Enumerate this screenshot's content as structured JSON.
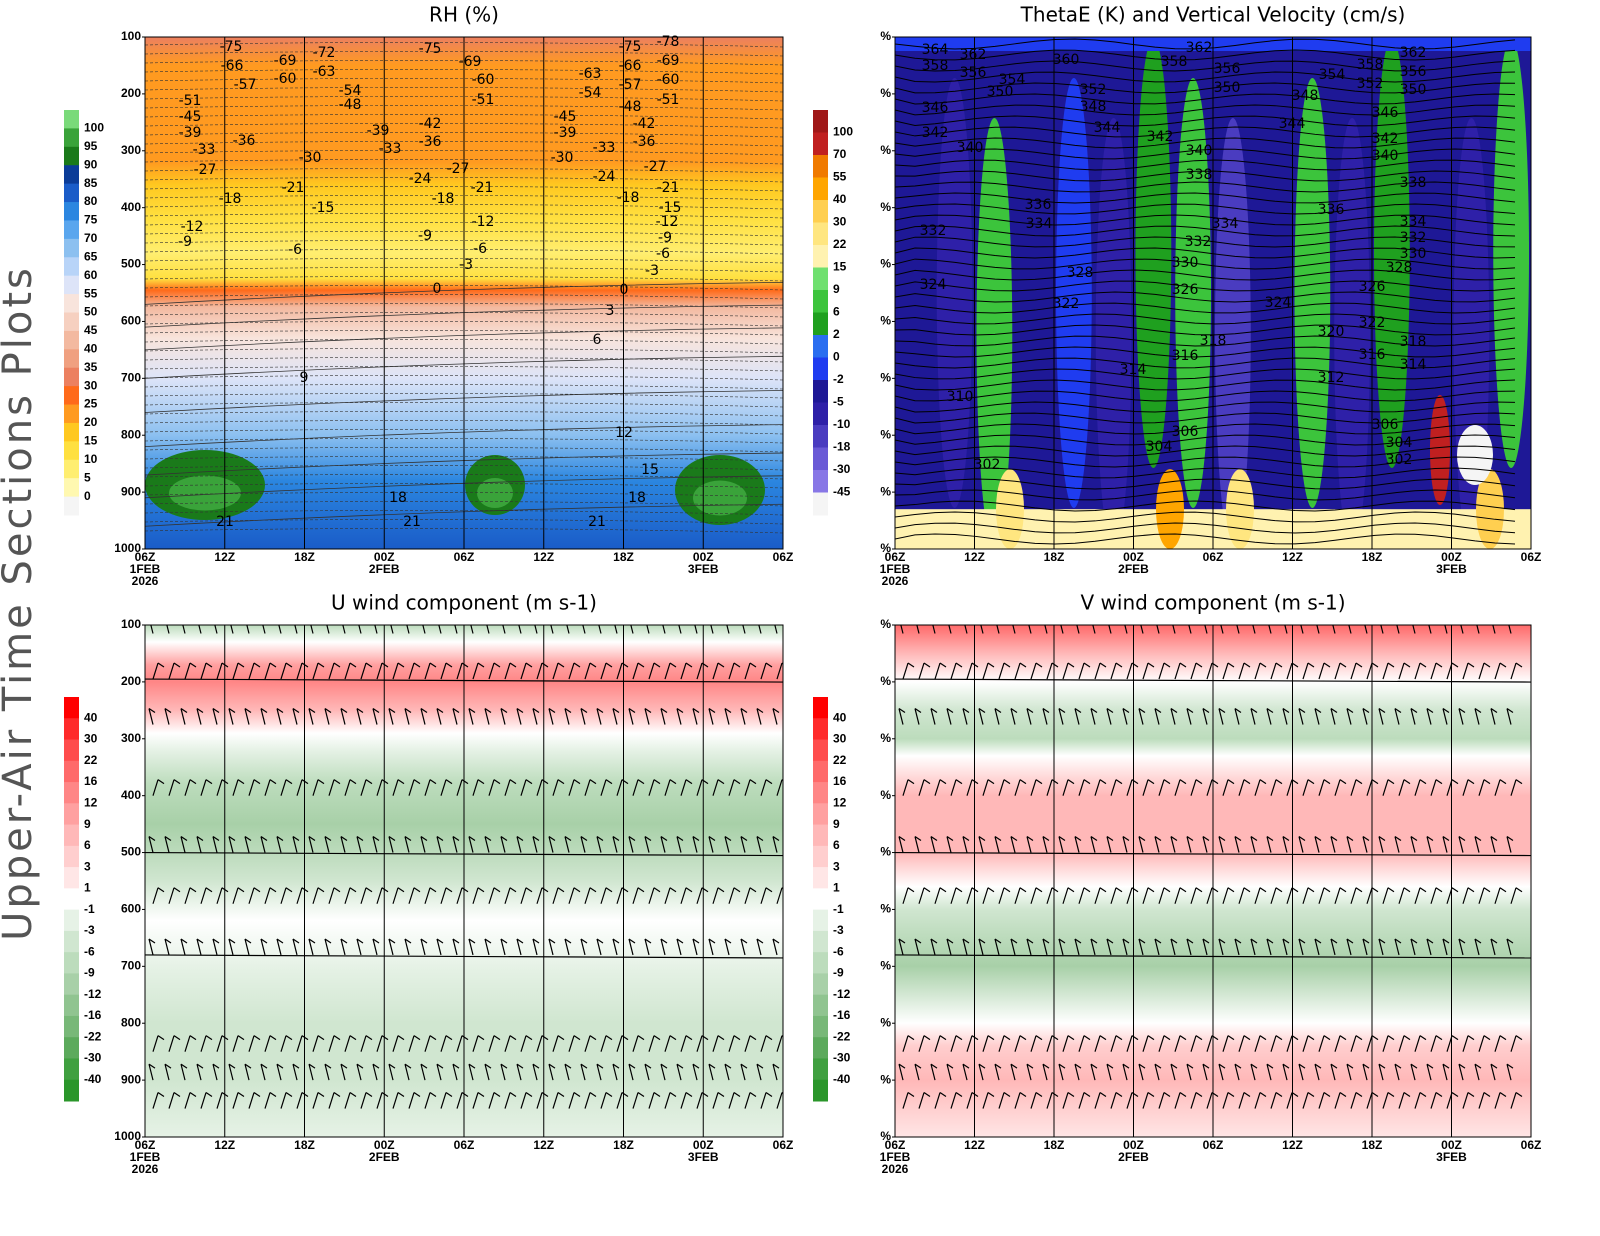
{
  "page_label": "Upper-Air Time Sections Plots",
  "chart_data": [
    {
      "type": "contour",
      "title": "RH (%)",
      "x_labels": [
        "06Z",
        "12Z",
        "18Z",
        "00Z",
        "06Z",
        "12Z",
        "18Z",
        "00Z",
        "06Z"
      ],
      "x_dates": [
        "1FEB",
        null,
        null,
        "2FEB",
        null,
        null,
        null,
        "3FEB",
        null
      ],
      "x_years": [
        "2026",
        null,
        null,
        null,
        null,
        null,
        null,
        null,
        null
      ],
      "ylim": [
        100,
        1000
      ],
      "yticks": [
        100,
        200,
        300,
        400,
        500,
        600,
        700,
        800,
        900,
        1000
      ],
      "colorbar": {
        "levels": [
          100,
          95,
          90,
          85,
          80,
          75,
          70,
          65,
          60,
          55,
          50,
          45,
          40,
          35,
          30,
          25,
          20,
          15,
          10,
          5,
          0
        ],
        "colors": [
          "#7ada7a",
          "#3aa33a",
          "#1a7a1a",
          "#0b3c98",
          "#1a5cc8",
          "#2b86e0",
          "#5aa6ee",
          "#8cc0f0",
          "#b8d4f8",
          "#dde4f8",
          "#f8e4dc",
          "#f6d0c0",
          "#f3b9a0",
          "#f0a080",
          "#ec8060",
          "#ff6a1a",
          "#ff9a20",
          "#ffc820",
          "#ffe040",
          "#ffee70",
          "#fff8b0",
          "#f5f5f5"
        ]
      },
      "contour_labels": [
        -75,
        -66,
        -57,
        -69,
        -60,
        -72,
        -63,
        -75,
        -69,
        -60,
        -51,
        -54,
        -48,
        -51,
        -45,
        -39,
        -33,
        -36,
        -27,
        -30,
        -39,
        -33,
        -42,
        -36,
        -27,
        -24,
        -21,
        -18,
        -21,
        -15,
        -18,
        -12,
        -9,
        -12,
        -9,
        -6,
        -3,
        -6,
        -75,
        -78,
        -66,
        -69,
        -57,
        -60,
        -51,
        -63,
        -54,
        -48,
        -45,
        -39,
        -30,
        -42,
        -36,
        -33,
        -27,
        -24,
        -21,
        -18,
        -15,
        -12,
        -9,
        -6,
        -3,
        0,
        0,
        3,
        6,
        9,
        12,
        15,
        18,
        18,
        21,
        21,
        21
      ]
    },
    {
      "type": "contour",
      "title": "ThetaE (K) and Vertical Velocity (cm/s)",
      "x_labels": [
        "06Z",
        "12Z",
        "18Z",
        "00Z",
        "06Z",
        "12Z",
        "18Z",
        "00Z",
        "06Z"
      ],
      "x_dates": [
        "1FEB",
        null,
        null,
        "2FEB",
        null,
        null,
        null,
        "3FEB",
        null
      ],
      "x_years": [
        "2026",
        null,
        null,
        null,
        null,
        null,
        null,
        null,
        null
      ],
      "ylim": [
        100,
        1000
      ],
      "yticks": [
        {
          "value": 100,
          "label": "%"
        },
        {
          "value": 200,
          "label": "%"
        },
        {
          "value": 300,
          "label": "%"
        },
        {
          "value": 400,
          "label": "%"
        },
        {
          "value": 500,
          "label": "%"
        },
        {
          "value": 600,
          "label": "%"
        },
        {
          "value": 700,
          "label": "%"
        },
        {
          "value": 800,
          "label": "%"
        },
        {
          "value": 900,
          "label": "%"
        },
        {
          "value": 1000,
          "label": "%"
        }
      ],
      "colorbar": {
        "levels": [
          100,
          70,
          55,
          40,
          30,
          22,
          15,
          9,
          6,
          2,
          0,
          -2,
          -5,
          -10,
          -18,
          -30,
          -45
        ],
        "colors": [
          "#a01818",
          "#c02020",
          "#f07a00",
          "#ffa500",
          "#ffcf50",
          "#ffe680",
          "#fff2b0",
          "#6fe06f",
          "#3cc43c",
          "#1fa01f",
          "#2a6ef0",
          "#1f3cf0",
          "#1e1896",
          "#2e20a8",
          "#4a3cc0",
          "#6a5ad6",
          "#8877e6",
          "#f5f5f5"
        ]
      },
      "contour_labels": [
        364,
        358,
        362,
        356,
        360,
        354,
        350,
        352,
        348,
        344,
        346,
        342,
        340,
        342,
        362,
        358,
        356,
        350,
        340,
        338,
        348,
        344,
        354,
        358,
        352,
        362,
        356,
        350,
        346,
        342,
        340,
        338,
        336,
        334,
        332,
        334,
        332,
        330,
        328,
        326,
        324,
        322,
        324,
        336,
        334,
        332,
        330,
        328,
        326,
        322,
        320,
        318,
        316,
        314,
        316,
        318,
        314,
        312,
        310,
        306,
        304,
        302,
        306,
        304,
        302
      ]
    },
    {
      "type": "contour",
      "title": "U wind component (m s-1)",
      "x_labels": [
        "06Z",
        "12Z",
        "18Z",
        "00Z",
        "06Z",
        "12Z",
        "18Z",
        "00Z",
        "06Z"
      ],
      "x_dates": [
        "1FEB",
        null,
        null,
        "2FEB",
        null,
        null,
        null,
        "3FEB",
        null
      ],
      "x_years": [
        "2026",
        null,
        null,
        null,
        null,
        null,
        null,
        null,
        null
      ],
      "ylim": [
        100,
        1000
      ],
      "yticks": [
        100,
        200,
        300,
        400,
        500,
        600,
        700,
        800,
        900,
        1000
      ],
      "colorbar": {
        "levels": [
          40,
          30,
          22,
          16,
          12,
          9,
          6,
          3,
          1,
          -1,
          -3,
          -6,
          -9,
          -12,
          -16,
          -22,
          -30,
          -40
        ],
        "colors": [
          "#ff0000",
          "#ff2a2a",
          "#ff4c4c",
          "#ff6a6a",
          "#ff8686",
          "#ffa0a0",
          "#ffb8b8",
          "#ffcece",
          "#ffe6e6",
          "#ffffff",
          "#e6f2e6",
          "#d0e6d0",
          "#bcdcbc",
          "#a8d0a8",
          "#90c490",
          "#78b878",
          "#5caa5c",
          "#40a040",
          "#2a962a"
        ]
      }
    },
    {
      "type": "contour",
      "title": "V wind component (m s-1)",
      "x_labels": [
        "06Z",
        "12Z",
        "18Z",
        "00Z",
        "06Z",
        "12Z",
        "18Z",
        "00Z",
        "06Z"
      ],
      "x_dates": [
        "1FEB",
        null,
        null,
        "2FEB",
        null,
        null,
        null,
        "3FEB",
        null
      ],
      "x_years": [
        "2026",
        null,
        null,
        null,
        null,
        null,
        null,
        null,
        null
      ],
      "ylim": [
        100,
        1000
      ],
      "yticks": [
        {
          "value": 100,
          "label": "%"
        },
        {
          "value": 200,
          "label": "%"
        },
        {
          "value": 300,
          "label": "%"
        },
        {
          "value": 400,
          "label": "%"
        },
        {
          "value": 500,
          "label": "%"
        },
        {
          "value": 600,
          "label": "%"
        },
        {
          "value": 700,
          "label": "%"
        },
        {
          "value": 800,
          "label": "%"
        },
        {
          "value": 900,
          "label": "%"
        },
        {
          "value": 1000,
          "label": "%"
        }
      ],
      "colorbar": {
        "levels": [
          40,
          30,
          22,
          16,
          12,
          9,
          6,
          3,
          1,
          -1,
          -3,
          -6,
          -9,
          -12,
          -16,
          -22,
          -30,
          -40
        ],
        "colors": [
          "#ff0000",
          "#ff2a2a",
          "#ff4c4c",
          "#ff6a6a",
          "#ff8686",
          "#ffa0a0",
          "#ffb8b8",
          "#ffcece",
          "#ffe6e6",
          "#ffffff",
          "#e6f2e6",
          "#d0e6d0",
          "#bcdcbc",
          "#a8d0a8",
          "#90c490",
          "#78b878",
          "#5caa5c",
          "#40a040",
          "#2a962a"
        ]
      }
    }
  ]
}
